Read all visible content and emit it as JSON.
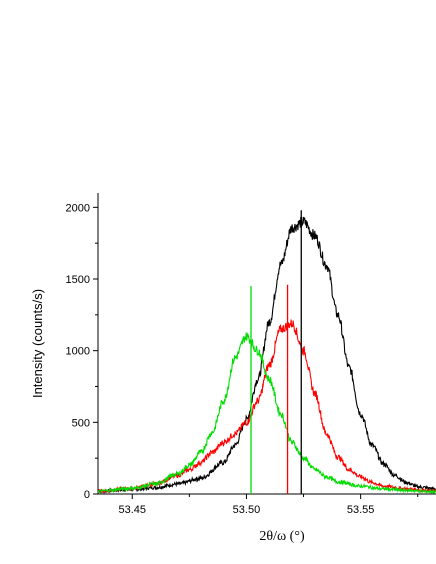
{
  "chart_data": {
    "type": "line",
    "title": "",
    "xlabel": "2θ/ω (°)",
    "ylabel": "Intensity (counts/s)",
    "xlim": [
      53.435,
      53.583
    ],
    "ylim": [
      0,
      2100
    ],
    "xticks": [
      53.45,
      53.5,
      53.55
    ],
    "xtick_labels": [
      "53.45",
      "53.50",
      "53.55"
    ],
    "yticks": [
      0,
      500,
      1000,
      1500,
      2000
    ],
    "ytick_labels": [
      "0",
      "500",
      "1000",
      "1500",
      "2000"
    ],
    "grid": false,
    "legend": "none",
    "series": [
      {
        "color": "#000000",
        "x": [
          53.435,
          53.45,
          53.46,
          53.47,
          53.48,
          53.49,
          53.495,
          53.5,
          53.505,
          53.51,
          53.515,
          53.52,
          53.525,
          53.53,
          53.535,
          53.54,
          53.545,
          53.55,
          53.555,
          53.56,
          53.565,
          53.57,
          53.575,
          53.583
        ],
        "y": [
          20,
          30,
          45,
          70,
          110,
          220,
          340,
          520,
          800,
          1200,
          1600,
          1860,
          1900,
          1800,
          1600,
          1250,
          880,
          560,
          340,
          210,
          130,
          80,
          50,
          35
        ]
      },
      {
        "color": "#ff0000",
        "x": [
          53.435,
          53.45,
          53.46,
          53.47,
          53.475,
          53.48,
          53.485,
          53.49,
          53.495,
          53.5,
          53.505,
          53.51,
          53.515,
          53.52,
          53.525,
          53.53,
          53.535,
          53.54,
          53.545,
          53.55,
          53.555,
          53.56,
          53.57,
          53.583
        ],
        "y": [
          20,
          40,
          70,
          130,
          170,
          220,
          290,
          360,
          420,
          500,
          650,
          900,
          1150,
          1190,
          1000,
          700,
          420,
          260,
          170,
          120,
          80,
          55,
          35,
          20
        ]
      },
      {
        "color": "#00dd00",
        "x": [
          53.435,
          53.45,
          53.46,
          53.47,
          53.475,
          53.48,
          53.485,
          53.49,
          53.495,
          53.5,
          53.505,
          53.51,
          53.515,
          53.52,
          53.525,
          53.53,
          53.535,
          53.54,
          53.55,
          53.56,
          53.57,
          53.583
        ],
        "y": [
          20,
          40,
          70,
          140,
          200,
          290,
          430,
          650,
          950,
          1100,
          1000,
          800,
          560,
          360,
          250,
          170,
          120,
          85,
          55,
          35,
          25,
          15
        ]
      }
    ],
    "markers": [
      {
        "x": 53.524,
        "y": 1980,
        "color": "#000000"
      },
      {
        "x": 53.518,
        "y": 1460,
        "color": "#ff0000"
      },
      {
        "x": 53.502,
        "y": 1450,
        "color": "#00dd00"
      }
    ]
  }
}
